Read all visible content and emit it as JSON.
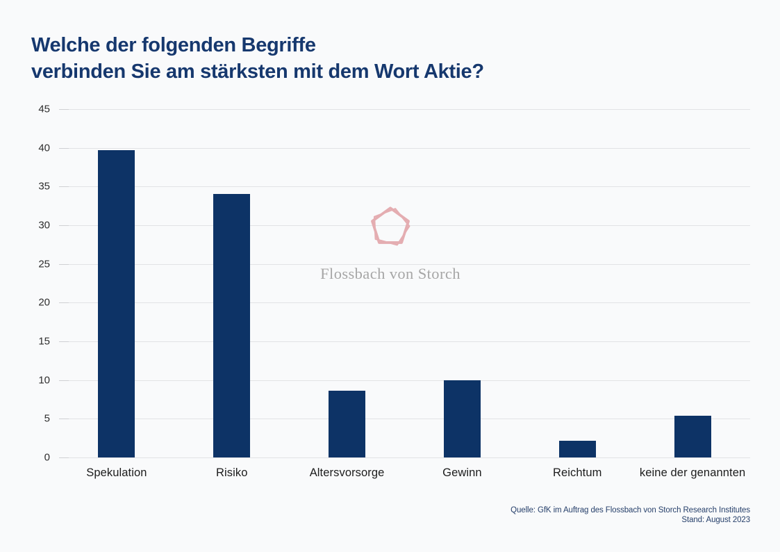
{
  "title": {
    "line1": "Welche der folgenden Begriffe",
    "line2": "verbinden Sie am stärksten mit dem Wort Aktie?"
  },
  "watermark": {
    "brand": "Flossbach von Storch",
    "logo_icon": "pentagon-logo"
  },
  "source": {
    "line1": "Quelle: GfK im Auftrag des Flossbach von Storch Research Institutes",
    "line2": "Stand: August 2023"
  },
  "colors": {
    "background": "#f9fafb",
    "bar": "#0d3366",
    "title": "#16386e",
    "gridline": "#e2e3e5",
    "axis_text": "#2e2e2e",
    "source_text": "#27406b",
    "logo_pink": "#e4adb1",
    "watermark_text": "#a6a6a6"
  },
  "chart_data": {
    "type": "bar",
    "title": "Welche der folgenden Begriffe verbinden Sie am stärksten mit dem Wort Aktie?",
    "categories": [
      "Spekulation",
      "Risiko",
      "Altersvorsorge",
      "Gewinn",
      "Reichtum",
      "keine der genannten"
    ],
    "values": [
      39.7,
      34,
      8.6,
      10,
      2.2,
      5.4
    ],
    "unit": "percent",
    "xlabel": "",
    "ylabel": "",
    "ylim": [
      0,
      45
    ],
    "yticks": [
      0,
      5,
      10,
      15,
      20,
      25,
      30,
      35,
      40,
      45
    ],
    "grid": true,
    "legend": false,
    "bar_color": "#0d3366"
  }
}
